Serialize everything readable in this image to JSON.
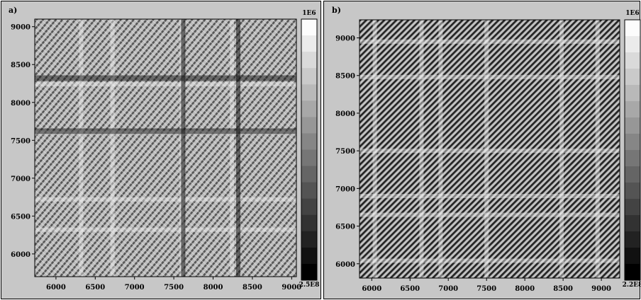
{
  "chart_data": [
    {
      "type": "heatmap",
      "panel_label": "a)",
      "x_ticks": [
        "6000",
        "6500",
        "7000",
        "7500",
        "8000",
        "8500",
        "9000"
      ],
      "y_ticks": [
        "9000",
        "8500",
        "8000",
        "7500",
        "7000",
        "6500",
        "6000"
      ],
      "xlim": [
        5730,
        9060
      ],
      "ylim": [
        5700,
        9100
      ],
      "colorbar": {
        "max_label": "1E6",
        "min_label": "2.5E8",
        "levels": 16
      },
      "bright_lines": [
        8240,
        7600,
        6720,
        6320
      ],
      "dark_lines": [
        8320,
        7620
      ]
    },
    {
      "type": "heatmap",
      "panel_label": "b)",
      "x_ticks": [
        "6000",
        "6500",
        "7000",
        "7500",
        "8000",
        "8500",
        "9000"
      ],
      "y_ticks": [
        "9000",
        "8500",
        "8000",
        "7500",
        "7000",
        "6500",
        "6000"
      ],
      "xlim": [
        5840,
        9240
      ],
      "ylim": [
        5810,
        9240
      ],
      "colorbar": {
        "max_label": "1E6",
        "min_label": "2.2E8",
        "levels": 16
      },
      "bright_lines": [
        6040,
        6650,
        6900,
        7500,
        8480,
        8950
      ]
    }
  ]
}
